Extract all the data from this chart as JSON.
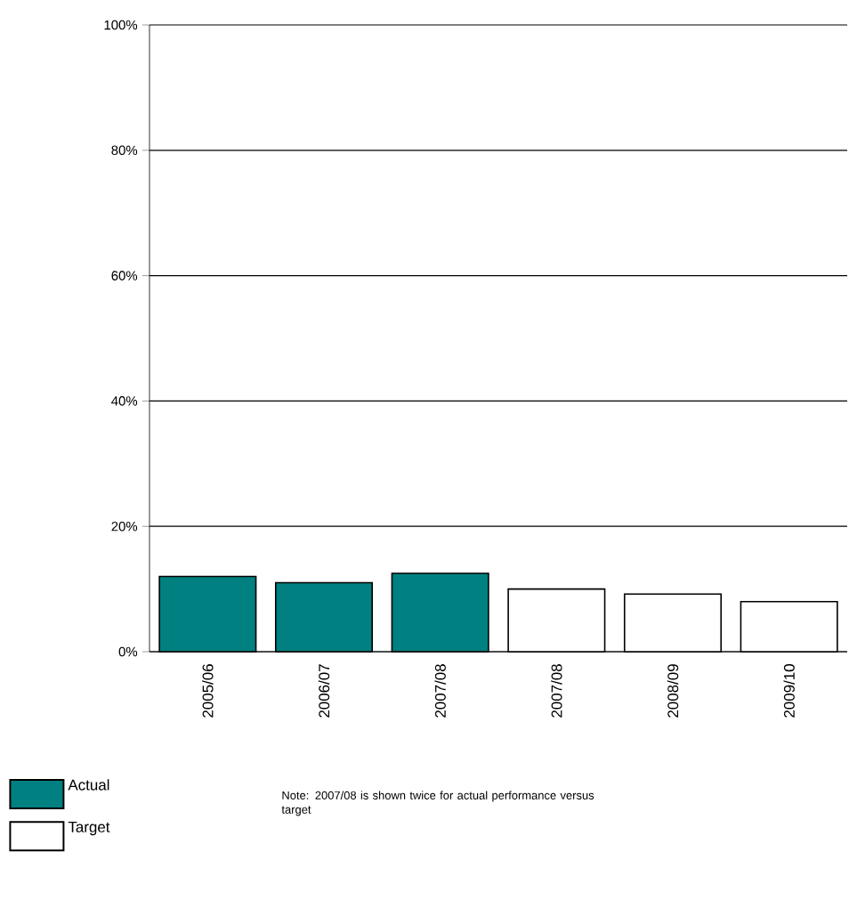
{
  "chart_data": {
    "type": "bar",
    "categories": [
      "2005/06",
      "2006/07",
      "2007/08",
      "2007/08",
      "2008/09",
      "2009/10"
    ],
    "series": [
      {
        "name": "Actual",
        "color": "#008080",
        "values": [
          12,
          11,
          12.5,
          null,
          null,
          null
        ]
      },
      {
        "name": "Target",
        "color": "#ffffff",
        "values": [
          null,
          null,
          null,
          10,
          9.2,
          8
        ]
      }
    ],
    "ylim": [
      0,
      100
    ],
    "yticks": [
      {
        "value": 0,
        "label": "0%"
      },
      {
        "value": 20,
        "label": "20%"
      },
      {
        "value": 40,
        "label": "40%"
      },
      {
        "value": 60,
        "label": "60%"
      },
      {
        "value": 80,
        "label": "80%"
      },
      {
        "value": 100,
        "label": "100%"
      }
    ],
    "grid": "y",
    "legend": "bottom left",
    "annotations": [
      "Note: 2007/08 is shown twice for actual performance versus target"
    ]
  }
}
